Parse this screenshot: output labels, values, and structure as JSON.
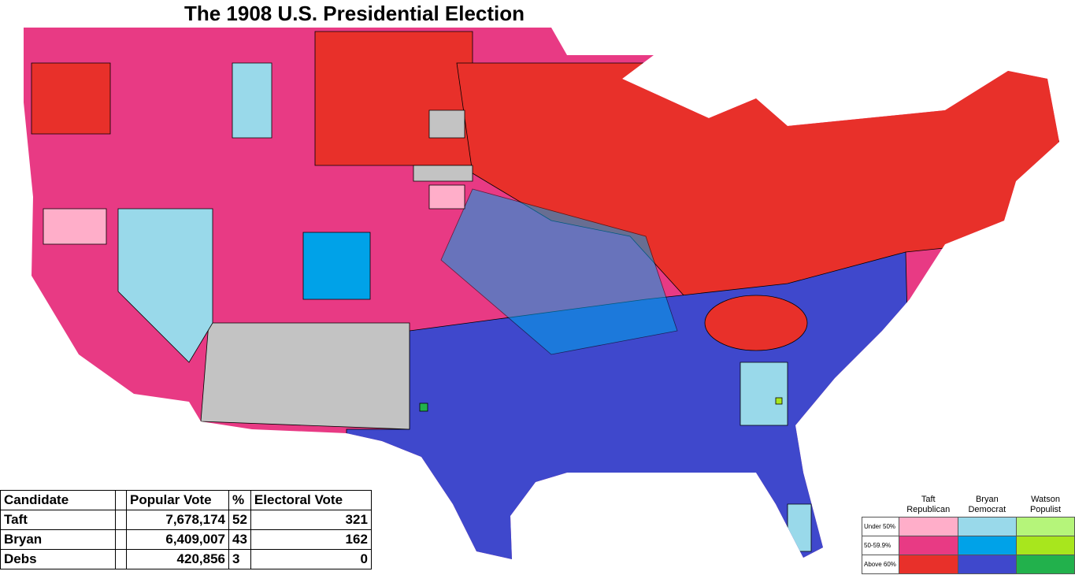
{
  "title": "The 1908 U.S. Presidential Election",
  "table": {
    "header": [
      "Candidate",
      "Popular Vote",
      "%",
      "Electoral Vote"
    ],
    "rows": [
      [
        "Taft",
        "7,678,174",
        "52",
        "321"
      ],
      [
        "Bryan",
        "6,409,007",
        "43",
        "162"
      ],
      [
        "Debs",
        "420,856",
        "3",
        "0"
      ]
    ]
  },
  "legend": {
    "columns": [
      {
        "candidate": "Taft",
        "party": "Republican"
      },
      {
        "candidate": "Bryan",
        "party": "Democrat"
      },
      {
        "candidate": "Watson",
        "party": "Populist"
      }
    ],
    "rows": [
      "Under 50%",
      "50-59.9%",
      "Above 60%"
    ]
  }
}
